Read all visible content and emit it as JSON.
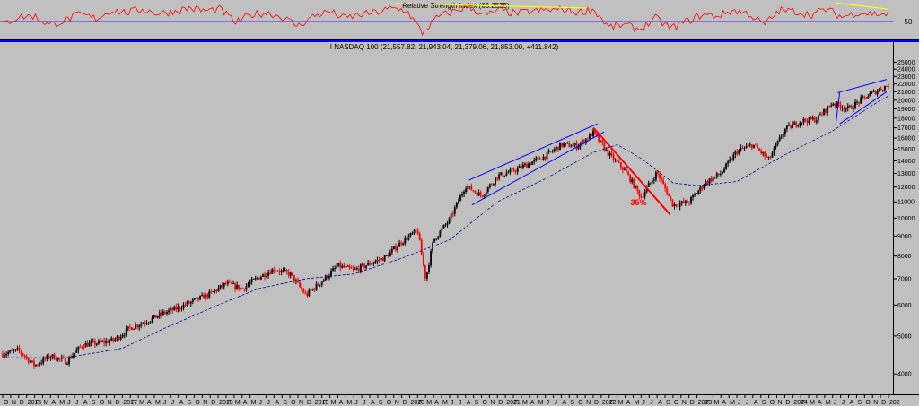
{
  "rsi_panel": {
    "title": "Relative Strength Index (63.2535)",
    "level_label": "50"
  },
  "price_panel": {
    "title": "I NASDAQ 100 (21,557.82, 21,943.04, 21,379.06, 21,853.00, +411.842)",
    "annotation": "-35%"
  },
  "colors": {
    "background": "#c0c0c0",
    "up_bar": "#000000",
    "down_bar": "#ff0000",
    "channel": "#0000ff",
    "moving_average": "#00008b",
    "rsi_line": "#ff0000",
    "rsi_trendline": "#ffff00",
    "drawdown_line": "#ff0000"
  },
  "x_axis_labels": [
    "O",
    "N",
    "D",
    "2016",
    "F",
    "M",
    "A",
    "M",
    "J",
    "J",
    "A",
    "S",
    "O",
    "N",
    "D",
    "2017",
    "F",
    "M",
    "A",
    "M",
    "J",
    "J",
    "A",
    "S",
    "O",
    "N",
    "D",
    "2018",
    "F",
    "M",
    "A",
    "M",
    "J",
    "J",
    "A",
    "S",
    "O",
    "N",
    "D",
    "2019",
    "F",
    "M",
    "A",
    "M",
    "J",
    "J",
    "A",
    "S",
    "O",
    "N",
    "D",
    "2020",
    "F",
    "M",
    "A",
    "M",
    "J",
    "J",
    "A",
    "S",
    "O",
    "N",
    "D",
    "2021",
    "F",
    "M",
    "A",
    "M",
    "J",
    "J",
    "A",
    "S",
    "O",
    "N",
    "D",
    "2022",
    "F",
    "M",
    "A",
    "M",
    "J",
    "J",
    "A",
    "S",
    "O",
    "N",
    "D",
    "2023",
    "F",
    "M",
    "A",
    "M",
    "J",
    "J",
    "A",
    "S",
    "O",
    "N",
    "D",
    "2024",
    "F",
    "M",
    "A",
    "M",
    "J",
    "J",
    "A",
    "S",
    "O",
    "N",
    "D",
    "202"
  ],
  "chart_data": {
    "type": "candlestick",
    "title": "I NASDAQ 100 (21,557.82, 21,943.04, 21,379.06, 21,853.00, +411.842)",
    "y_scale": "log",
    "ylim": [
      3700,
      26000
    ],
    "y_ticks": [
      4000,
      5000,
      6000,
      7000,
      8000,
      9000,
      10000,
      11000,
      12000,
      13000,
      14000,
      15000,
      16000,
      17000,
      18000,
      19000,
      20000,
      21000,
      22000,
      23000,
      24000,
      25000
    ],
    "x_range": [
      "2015-10",
      "2025-01"
    ],
    "series": [
      {
        "name": "NASDAQ 100",
        "x": [
          "2015-10",
          "2015-12",
          "2016-02",
          "2016-04",
          "2016-06",
          "2016-08",
          "2016-10",
          "2016-12",
          "2017-02",
          "2017-04",
          "2017-06",
          "2017-08",
          "2017-10",
          "2017-12",
          "2018-02",
          "2018-04",
          "2018-06",
          "2018-08",
          "2018-10",
          "2018-12",
          "2019-02",
          "2019-04",
          "2019-06",
          "2019-08",
          "2019-10",
          "2019-12",
          "2020-02",
          "2020-03",
          "2020-04",
          "2020-06",
          "2020-08",
          "2020-10",
          "2020-12",
          "2021-02",
          "2021-04",
          "2021-06",
          "2021-08",
          "2021-10",
          "2021-12",
          "2022-02",
          "2022-04",
          "2022-06",
          "2022-08",
          "2022-10",
          "2022-12",
          "2023-02",
          "2023-04",
          "2023-06",
          "2023-08",
          "2023-10",
          "2023-12",
          "2024-02",
          "2024-04",
          "2024-06",
          "2024-08",
          "2024-10",
          "2024-12",
          "2025-01"
        ],
        "values": [
          4500,
          4600,
          4200,
          4450,
          4300,
          4750,
          4800,
          4880,
          5250,
          5450,
          5700,
          5900,
          6150,
          6400,
          6800,
          6600,
          7050,
          7400,
          7200,
          6350,
          6900,
          7550,
          7350,
          7650,
          7950,
          8700,
          9300,
          7000,
          8800,
          9900,
          12100,
          11400,
          12800,
          13200,
          13800,
          14400,
          15400,
          15300,
          16500,
          14500,
          13200,
          11300,
          13100,
          10800,
          11000,
          12300,
          13000,
          14800,
          15400,
          14100,
          16800,
          17700,
          17900,
          19700,
          19000,
          20300,
          21400,
          21853
        ]
      },
      {
        "name": "Moving average",
        "x": [
          "2015-10",
          "2016-06",
          "2017-01",
          "2017-06",
          "2018-01",
          "2018-06",
          "2018-12",
          "2019-06",
          "2019-12",
          "2020-06",
          "2020-12",
          "2021-06",
          "2021-12",
          "2022-03",
          "2022-06",
          "2022-10",
          "2023-01",
          "2023-06",
          "2023-12",
          "2024-06",
          "2024-12",
          "2025-01"
        ],
        "values": [
          4400,
          4400,
          4650,
          5200,
          6000,
          6600,
          7000,
          7200,
          7900,
          8800,
          11000,
          12600,
          14700,
          15400,
          14200,
          12300,
          12100,
          12400,
          14500,
          16700,
          20000,
          20500
        ]
      }
    ],
    "rsi": {
      "name": "Relative Strength Index (63.2535)",
      "value": 63.2535,
      "levels": [
        50
      ],
      "values": [
        45,
        58,
        60,
        44,
        52,
        63,
        55,
        70,
        66,
        72,
        64,
        68,
        74,
        69,
        72,
        48,
        62,
        66,
        58,
        42,
        60,
        68,
        56,
        62,
        66,
        73,
        70,
        30,
        58,
        68,
        77,
        60,
        70,
        64,
        68,
        70,
        72,
        66,
        72,
        40,
        44,
        36,
        56,
        38,
        50,
        62,
        60,
        70,
        64,
        44,
        70,
        68,
        62,
        72,
        58,
        66,
        64,
        63
      ]
    },
    "annotations": [
      "-35%"
    ]
  }
}
